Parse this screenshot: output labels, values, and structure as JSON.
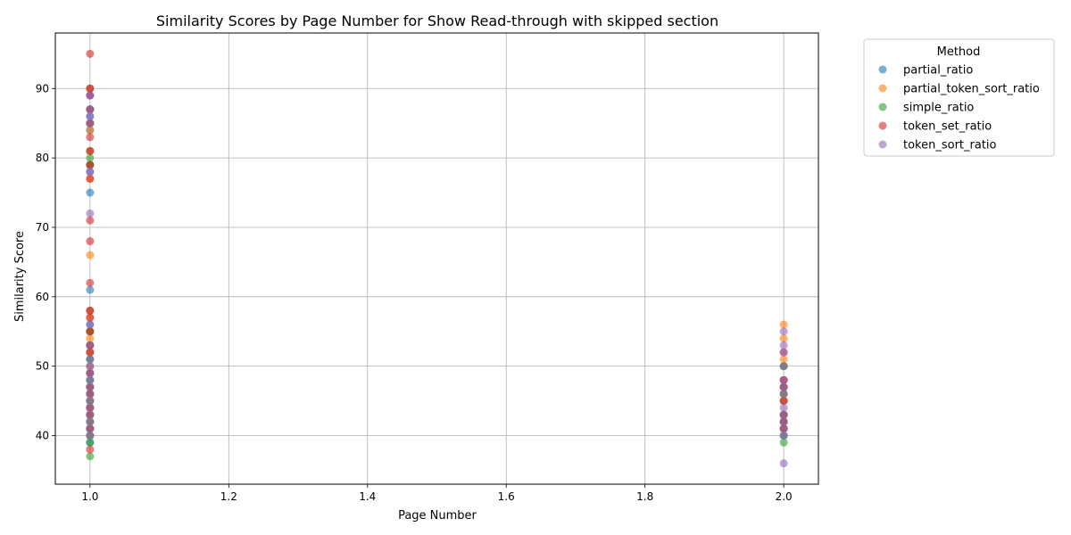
{
  "chart_data": {
    "type": "scatter",
    "title": "Similarity Scores by Page Number for Show Read-through with skipped section",
    "xlabel": "Page Number",
    "ylabel": "Similarity Score",
    "xlim": [
      0.95,
      2.05
    ],
    "ylim": [
      33,
      98
    ],
    "x_ticks": [
      1.0,
      1.2,
      1.4,
      1.6,
      1.8,
      2.0
    ],
    "x_tick_labels": [
      "1.0",
      "1.2",
      "1.4",
      "1.6",
      "1.8",
      "2.0"
    ],
    "y_ticks": [
      40,
      50,
      60,
      70,
      80,
      90
    ],
    "y_tick_labels": [
      "40",
      "50",
      "60",
      "70",
      "80",
      "90"
    ],
    "grid": true,
    "legend_title": "Method",
    "legend_position": "outside-top-right",
    "series": [
      {
        "name": "partial_ratio",
        "color": "#1f77b4",
        "points": [
          [
            1,
            90
          ],
          [
            1,
            89
          ],
          [
            1,
            87
          ],
          [
            1,
            86
          ],
          [
            1,
            85
          ],
          [
            1,
            84
          ],
          [
            1,
            81
          ],
          [
            1,
            79
          ],
          [
            1,
            78
          ],
          [
            1,
            75
          ],
          [
            1,
            61
          ],
          [
            1,
            58
          ],
          [
            1,
            56
          ],
          [
            1,
            55
          ],
          [
            1,
            53
          ],
          [
            1,
            52
          ],
          [
            1,
            51
          ],
          [
            1,
            50
          ],
          [
            1,
            49
          ],
          [
            1,
            48
          ],
          [
            1,
            47
          ],
          [
            1,
            46
          ],
          [
            1,
            45
          ],
          [
            1,
            44
          ],
          [
            1,
            43
          ],
          [
            1,
            42
          ],
          [
            1,
            41
          ],
          [
            1,
            40
          ],
          [
            1,
            39
          ],
          [
            2,
            50
          ],
          [
            2,
            48
          ],
          [
            2,
            47
          ],
          [
            2,
            46
          ],
          [
            2,
            45
          ],
          [
            2,
            43
          ],
          [
            2,
            42
          ],
          [
            2,
            41
          ],
          [
            2,
            40
          ]
        ]
      },
      {
        "name": "partial_token_sort_ratio",
        "color": "#ff7f0e",
        "points": [
          [
            1,
            90
          ],
          [
            1,
            87
          ],
          [
            1,
            85
          ],
          [
            1,
            84
          ],
          [
            1,
            81
          ],
          [
            1,
            79
          ],
          [
            1,
            77
          ],
          [
            1,
            66
          ],
          [
            1,
            58
          ],
          [
            1,
            57
          ],
          [
            1,
            55
          ],
          [
            1,
            54
          ],
          [
            1,
            53
          ],
          [
            1,
            52
          ],
          [
            1,
            50
          ],
          [
            1,
            49
          ],
          [
            1,
            47
          ],
          [
            1,
            46
          ],
          [
            1,
            45
          ],
          [
            1,
            44
          ],
          [
            1,
            43
          ],
          [
            1,
            42
          ],
          [
            1,
            41
          ],
          [
            1,
            40
          ],
          [
            2,
            56
          ],
          [
            2,
            54
          ],
          [
            2,
            51
          ],
          [
            2,
            50
          ],
          [
            2,
            48
          ],
          [
            2,
            47
          ],
          [
            2,
            46
          ],
          [
            2,
            45
          ],
          [
            2,
            43
          ],
          [
            2,
            42
          ],
          [
            2,
            41
          ]
        ]
      },
      {
        "name": "simple_ratio",
        "color": "#2ca02c",
        "points": [
          [
            1,
            87
          ],
          [
            1,
            85
          ],
          [
            1,
            80
          ],
          [
            1,
            79
          ],
          [
            1,
            55
          ],
          [
            1,
            53
          ],
          [
            1,
            51
          ],
          [
            1,
            49
          ],
          [
            1,
            48
          ],
          [
            1,
            47
          ],
          [
            1,
            46
          ],
          [
            1,
            45
          ],
          [
            1,
            44
          ],
          [
            1,
            43
          ],
          [
            1,
            42
          ],
          [
            1,
            41
          ],
          [
            1,
            40
          ],
          [
            1,
            39
          ],
          [
            1,
            37
          ],
          [
            2,
            50
          ],
          [
            2,
            47
          ],
          [
            2,
            46
          ],
          [
            2,
            43
          ],
          [
            2,
            42
          ],
          [
            2,
            41
          ],
          [
            2,
            40
          ],
          [
            2,
            39
          ]
        ]
      },
      {
        "name": "token_set_ratio",
        "color": "#d62728",
        "points": [
          [
            1,
            95
          ],
          [
            1,
            90
          ],
          [
            1,
            89
          ],
          [
            1,
            87
          ],
          [
            1,
            85
          ],
          [
            1,
            83
          ],
          [
            1,
            81
          ],
          [
            1,
            79
          ],
          [
            1,
            77
          ],
          [
            1,
            71
          ],
          [
            1,
            68
          ],
          [
            1,
            62
          ],
          [
            1,
            58
          ],
          [
            1,
            57
          ],
          [
            1,
            55
          ],
          [
            1,
            53
          ],
          [
            1,
            52
          ],
          [
            1,
            49
          ],
          [
            1,
            47
          ],
          [
            1,
            46
          ],
          [
            1,
            44
          ],
          [
            1,
            43
          ],
          [
            1,
            41
          ],
          [
            1,
            38
          ],
          [
            2,
            52
          ],
          [
            2,
            48
          ],
          [
            2,
            47
          ],
          [
            2,
            45
          ],
          [
            2,
            43
          ],
          [
            2,
            42
          ],
          [
            2,
            41
          ]
        ]
      },
      {
        "name": "token_sort_ratio",
        "color": "#9467bd",
        "points": [
          [
            1,
            89
          ],
          [
            1,
            87
          ],
          [
            1,
            86
          ],
          [
            1,
            85
          ],
          [
            1,
            78
          ],
          [
            1,
            72
          ],
          [
            1,
            56
          ],
          [
            1,
            53
          ],
          [
            1,
            51
          ],
          [
            1,
            50
          ],
          [
            1,
            49
          ],
          [
            1,
            48
          ],
          [
            1,
            47
          ],
          [
            1,
            46
          ],
          [
            1,
            45
          ],
          [
            1,
            44
          ],
          [
            1,
            43
          ],
          [
            1,
            42
          ],
          [
            1,
            41
          ],
          [
            1,
            40
          ],
          [
            2,
            55
          ],
          [
            2,
            53
          ],
          [
            2,
            52
          ],
          [
            2,
            50
          ],
          [
            2,
            48
          ],
          [
            2,
            47
          ],
          [
            2,
            46
          ],
          [
            2,
            44
          ],
          [
            2,
            43
          ],
          [
            2,
            42
          ],
          [
            2,
            41
          ],
          [
            2,
            40
          ],
          [
            2,
            36
          ]
        ]
      }
    ]
  }
}
